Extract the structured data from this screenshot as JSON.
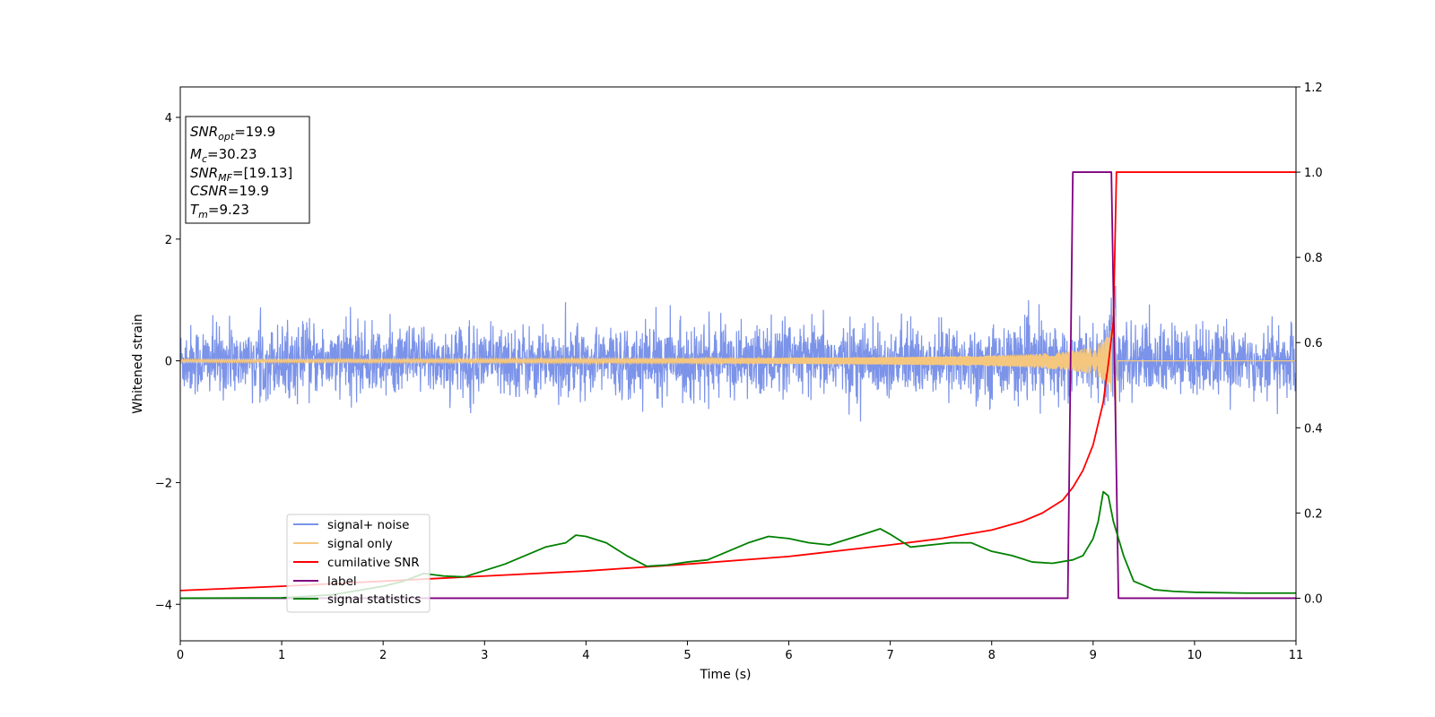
{
  "chart_data": {
    "type": "line",
    "xlabel": "Time (s)",
    "ylabel": "Whitened strain",
    "xlim": [
      0,
      11
    ],
    "ylim_left": [
      -4.6,
      4.5
    ],
    "ylim_right": [
      -0.1,
      1.2
    ],
    "x_ticks": [
      "0",
      "1",
      "2",
      "3",
      "4",
      "5",
      "6",
      "7",
      "8",
      "9",
      "10",
      "11"
    ],
    "y_left_ticks": [
      "4",
      "2",
      "0",
      "−2",
      "−4"
    ],
    "y_left_tick_values": [
      4,
      2,
      0,
      -2,
      -4
    ],
    "y_right_ticks": [
      "1.2",
      "1.0",
      "0.8",
      "0.6",
      "0.4",
      "0.2",
      "0.0"
    ],
    "y_right_tick_values": [
      1.2,
      1.0,
      0.8,
      0.6,
      0.4,
      0.2,
      0.0
    ],
    "grid": false,
    "legend_placement": "lower-left",
    "info_box": {
      "snr_opt": {
        "main": "SNR",
        "sub": "opt",
        "value": "=19.9"
      },
      "mc": {
        "main": "M",
        "sub": "c",
        "value": "=30.23"
      },
      "snr_mf": {
        "main": "SNR",
        "sub": "MF",
        "value": "=[19.13]"
      },
      "csnr": {
        "main": "CSNR",
        "value": "=19.9"
      },
      "tm": {
        "main": "T",
        "sub": "m",
        "value": "=9.23"
      }
    },
    "series": [
      {
        "name": "signal+ noise",
        "axis": "left",
        "color": "#7b93e9",
        "description_values": "whitened noise, amplitude about ±0.6 with peaks near ±1.1, plus chirp"
      },
      {
        "name": "signal only",
        "axis": "left",
        "color": "#f5c77e",
        "chirp_merger_time": 9.23,
        "chirp_peak_amplitude": 1.45
      },
      {
        "name": "cumilative SNR",
        "axis": "right",
        "color": "#ff0000",
        "x": [
          0,
          1,
          2,
          3,
          4,
          5,
          6,
          7,
          7.5,
          8,
          8.3,
          8.5,
          8.7,
          8.8,
          8.9,
          9.0,
          9.1,
          9.15,
          9.2,
          9.23,
          9.3,
          11
        ],
        "y": [
          0.018,
          0.028,
          0.04,
          0.052,
          0.064,
          0.08,
          0.098,
          0.125,
          0.14,
          0.16,
          0.18,
          0.2,
          0.23,
          0.26,
          0.3,
          0.36,
          0.46,
          0.55,
          0.65,
          1.0,
          1.0,
          1.0
        ]
      },
      {
        "name": "label",
        "axis": "right",
        "color": "#800080",
        "x": [
          0,
          8.75,
          8.8,
          9.18,
          9.25,
          11
        ],
        "y": [
          0,
          0,
          1.0,
          1.0,
          0,
          0
        ]
      },
      {
        "name": "signal statistics",
        "axis": "right",
        "color": "#008000",
        "x": [
          0,
          1,
          1.5,
          2,
          2.2,
          2.4,
          2.6,
          2.8,
          3.0,
          3.2,
          3.4,
          3.6,
          3.8,
          3.9,
          4.0,
          4.2,
          4.4,
          4.6,
          4.8,
          5.0,
          5.2,
          5.4,
          5.6,
          5.8,
          6.0,
          6.2,
          6.4,
          6.6,
          6.8,
          6.9,
          7.0,
          7.2,
          7.4,
          7.6,
          7.8,
          8.0,
          8.2,
          8.4,
          8.6,
          8.8,
          8.9,
          9.0,
          9.05,
          9.1,
          9.15,
          9.2,
          9.3,
          9.4,
          9.6,
          9.8,
          10,
          10.5,
          11
        ],
        "y": [
          0,
          0.001,
          0.008,
          0.028,
          0.04,
          0.058,
          0.052,
          0.05,
          0.065,
          0.08,
          0.1,
          0.12,
          0.13,
          0.148,
          0.145,
          0.13,
          0.1,
          0.075,
          0.078,
          0.085,
          0.09,
          0.11,
          0.13,
          0.145,
          0.14,
          0.13,
          0.125,
          0.14,
          0.155,
          0.163,
          0.15,
          0.12,
          0.125,
          0.13,
          0.13,
          0.11,
          0.1,
          0.085,
          0.082,
          0.09,
          0.1,
          0.14,
          0.18,
          0.25,
          0.24,
          0.18,
          0.1,
          0.04,
          0.02,
          0.016,
          0.014,
          0.012,
          0.012
        ]
      }
    ]
  }
}
